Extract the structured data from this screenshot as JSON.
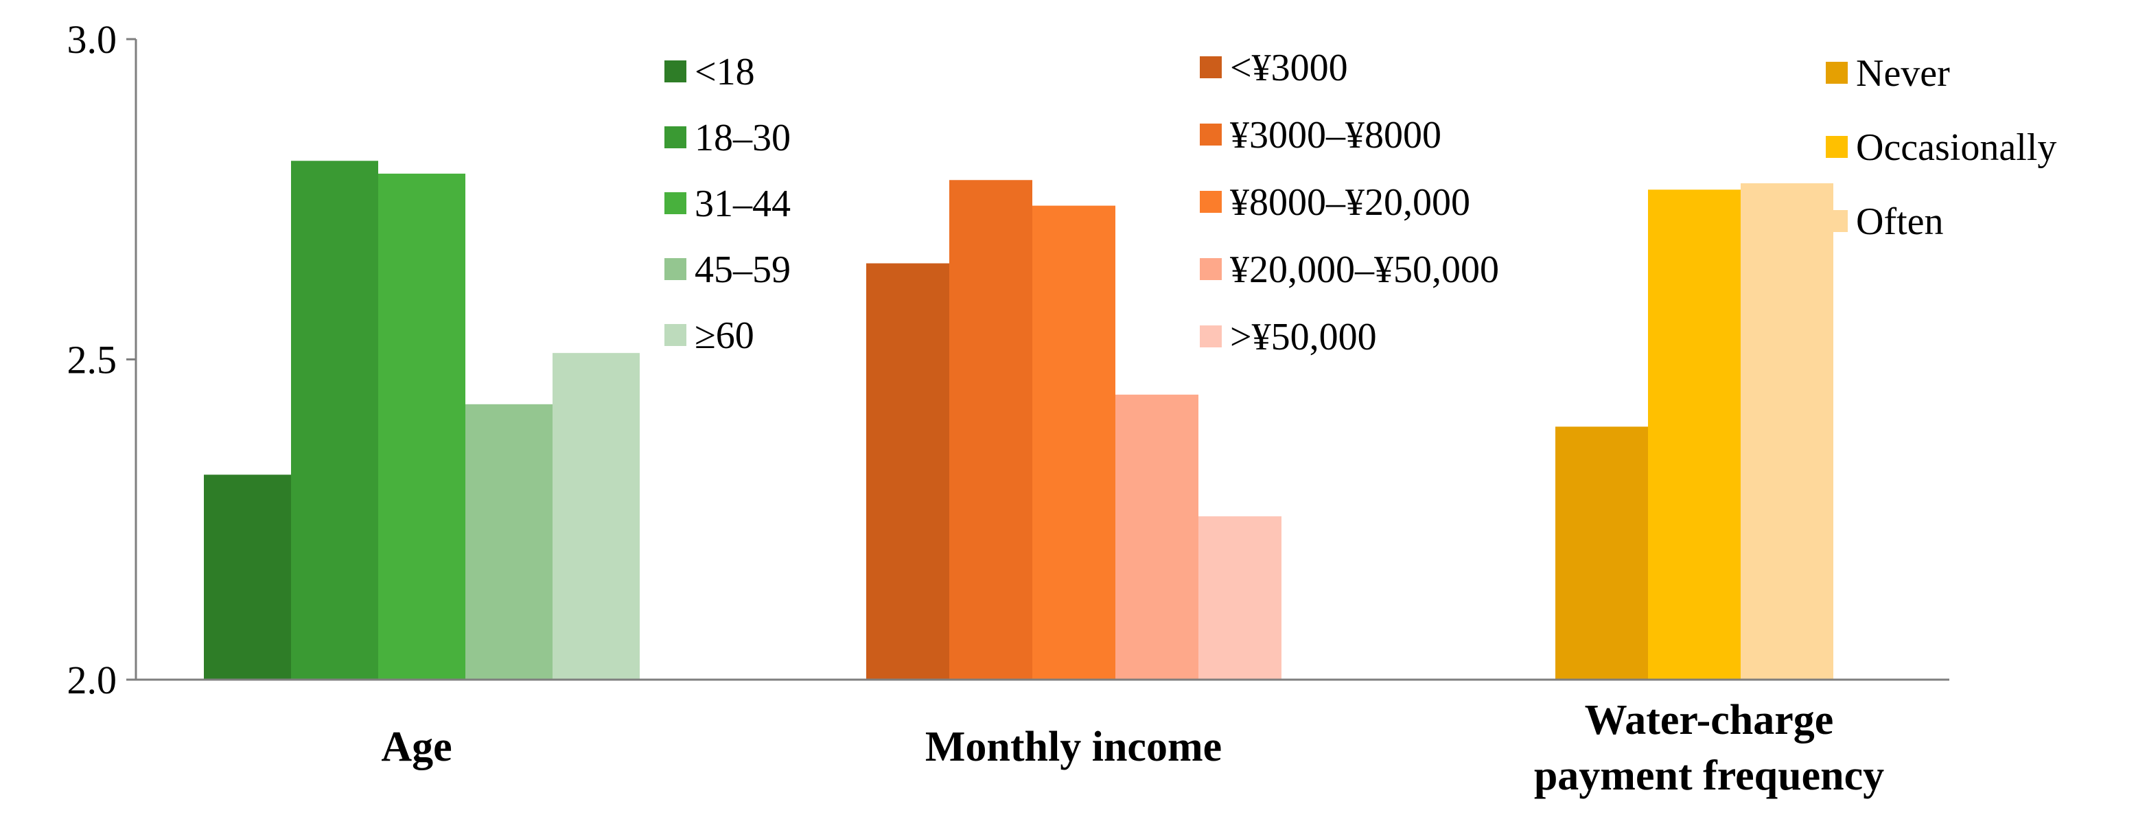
{
  "chart_data": {
    "type": "bar",
    "y_axis": {
      "ylim": [
        2.0,
        3.0
      ],
      "ticks": [
        "2.0",
        "2.5",
        "3.0"
      ],
      "grid": false
    },
    "groups": [
      {
        "name": "Age",
        "label_lines": [
          "Age"
        ],
        "bars": [
          {
            "name": "<18",
            "value": 2.32,
            "color": "#2e7d27"
          },
          {
            "name": "18–30",
            "value": 2.81,
            "color": "#3a9a33"
          },
          {
            "name": "31–44",
            "value": 2.79,
            "color": "#48b13d"
          },
          {
            "name": "45–59",
            "value": 2.43,
            "color": "#94c690"
          },
          {
            "name": "≥60",
            "value": 2.51,
            "color": "#bddbbc"
          }
        ]
      },
      {
        "name": "Monthly income",
        "label_lines": [
          "Monthly income"
        ],
        "bars": [
          {
            "name": "<¥3000",
            "value": 2.65,
            "color": "#cc5d1a"
          },
          {
            "name": "¥3000–¥8000",
            "value": 2.78,
            "color": "#ec6e22"
          },
          {
            "name": "¥8000–¥20,000",
            "value": 2.74,
            "color": "#fb7d2b"
          },
          {
            "name": "¥20,000–¥50,000",
            "value": 2.445,
            "color": "#fea88a"
          },
          {
            "name": ">¥50,000",
            "value": 2.255,
            "color": "#fec5b6"
          }
        ]
      },
      {
        "name": "Water-charge payment frequency",
        "label_lines": [
          "Water-charge",
          "payment frequency"
        ],
        "bars": [
          {
            "name": "Never",
            "value": 2.395,
            "color": "#e5a002"
          },
          {
            "name": "Occasionally",
            "value": 2.765,
            "color": "#ffc000"
          },
          {
            "name": "Often",
            "value": 2.775,
            "color": "#fed89b"
          }
        ]
      }
    ],
    "legend_placement": "inside-top, one column per group"
  }
}
